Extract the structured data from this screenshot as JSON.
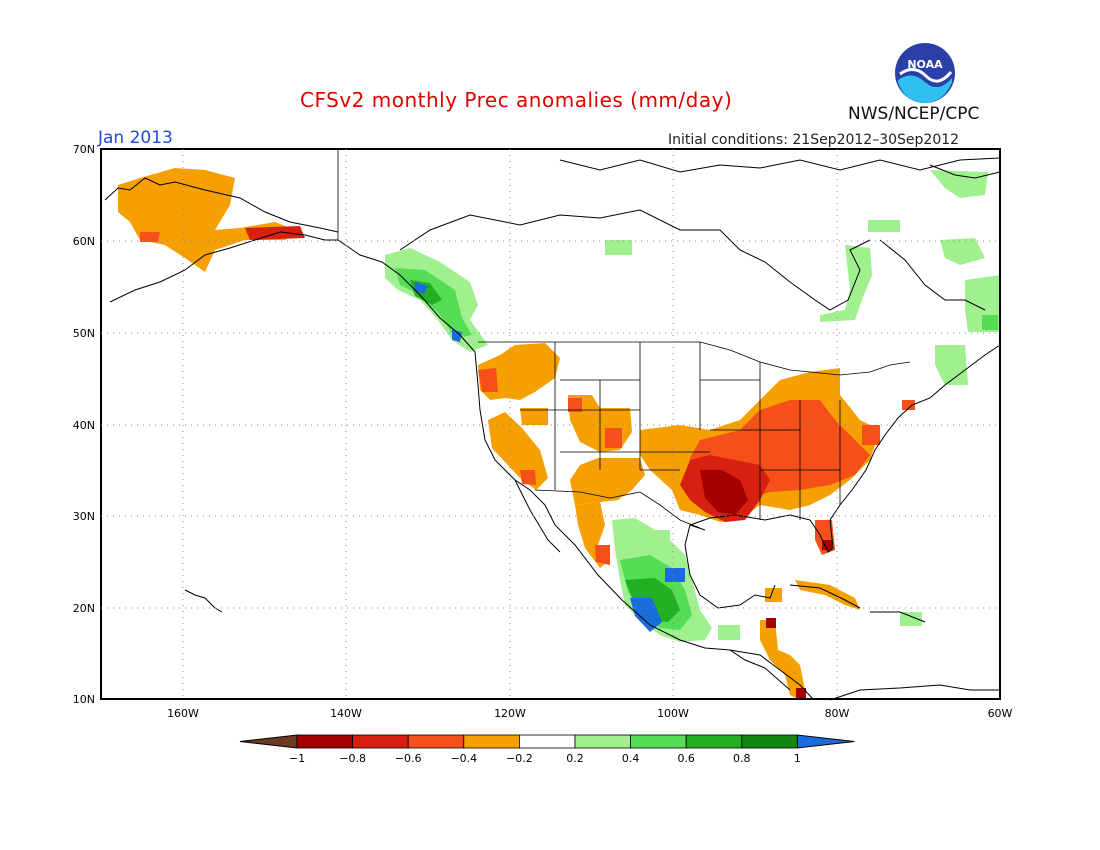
{
  "header": {
    "title": "CFSv2 monthly Prec anomalies (mm/day)",
    "month": "Jan 2013",
    "initial_conditions": "Initial conditions: 21Sep2012–30Sep2012",
    "org": "NWS/NCEP/CPC",
    "logo_text": "NOAA"
  },
  "map": {
    "projection": "lat-lon",
    "lon_range": [
      -170,
      -60
    ],
    "lat_range": [
      10,
      70
    ],
    "grid": "dotted",
    "lat_labels": [
      "70N",
      "60N",
      "50N",
      "40N",
      "30N",
      "20N",
      "10N"
    ],
    "lon_labels": [
      "160W",
      "140W",
      "120W",
      "100W",
      "80W",
      "60W"
    ]
  },
  "colorbar": {
    "tick_labels": [
      "−1",
      "−0.8",
      "−0.6",
      "−0.4",
      "−0.2",
      "0.2",
      "0.4",
      "0.6",
      "0.8",
      "1"
    ],
    "colors": [
      "#6b3a24",
      "#a50000",
      "#d82010",
      "#f5501a",
      "#f5a000",
      "#ffffff",
      "#a0f090",
      "#55dd55",
      "#22b022",
      "#108810",
      "#1a6cdd"
    ]
  },
  "anomalies": {
    "units": "mm/day",
    "dry_regions": [
      "Alaska interior and south coast",
      "Interior western US",
      "Southern Plains",
      "Mississippi and Ohio valleys",
      "Southeast US",
      "Florida",
      "Central America"
    ],
    "wet_regions": [
      "British Columbia coast",
      "Western Mexico",
      "Eastern Canada",
      "Greenland coast"
    ]
  }
}
